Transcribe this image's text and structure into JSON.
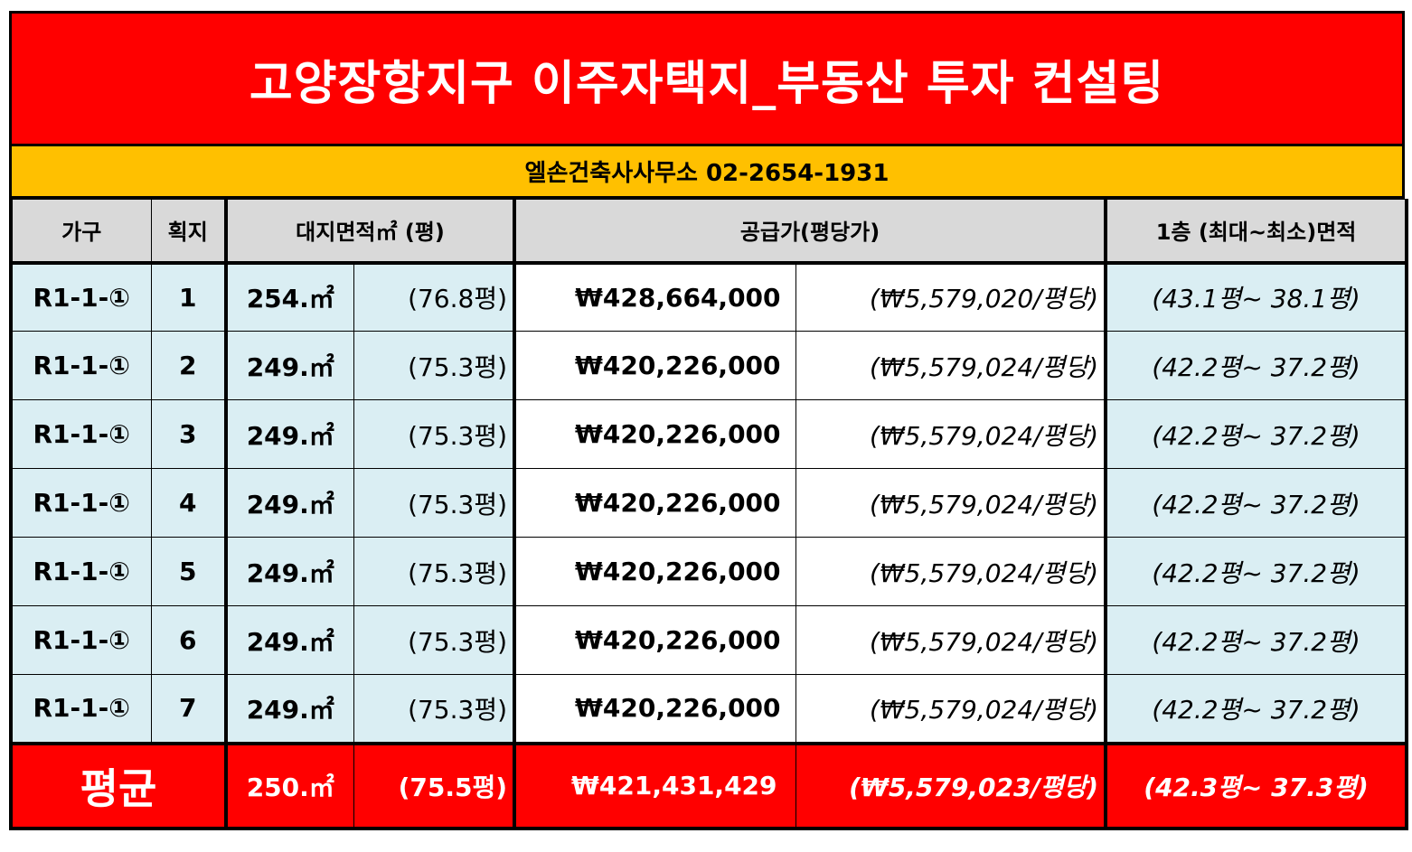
{
  "title": "고양장항지구 이주자택지_부동산 투자 컨설팅",
  "contact": "엘손건축사사무소 02-2654-1931",
  "headers": {
    "household": "가구",
    "lot": "획지",
    "land_area": "대지면적㎡ (평)",
    "supply_price": "공급가(평당가)",
    "floor_area": "1층 (최대~최소)면적"
  },
  "rows": [
    {
      "household": "R1-1-①",
      "lot": "1",
      "area_m2": "254.㎡",
      "area_py": "(76.8평)",
      "price": "₩428,664,000",
      "price_per_py": "(₩5,579,020/평당)",
      "floor": "(43.1평~  38.1평)"
    },
    {
      "household": "R1-1-①",
      "lot": "2",
      "area_m2": "249.㎡",
      "area_py": "(75.3평)",
      "price": "₩420,226,000",
      "price_per_py": "(₩5,579,024/평당)",
      "floor": "(42.2평~  37.2평)"
    },
    {
      "household": "R1-1-①",
      "lot": "3",
      "area_m2": "249.㎡",
      "area_py": "(75.3평)",
      "price": "₩420,226,000",
      "price_per_py": "(₩5,579,024/평당)",
      "floor": "(42.2평~  37.2평)"
    },
    {
      "household": "R1-1-①",
      "lot": "4",
      "area_m2": "249.㎡",
      "area_py": "(75.3평)",
      "price": "₩420,226,000",
      "price_per_py": "(₩5,579,024/평당)",
      "floor": "(42.2평~  37.2평)"
    },
    {
      "household": "R1-1-①",
      "lot": "5",
      "area_m2": "249.㎡",
      "area_py": "(75.3평)",
      "price": "₩420,226,000",
      "price_per_py": "(₩5,579,024/평당)",
      "floor": "(42.2평~  37.2평)"
    },
    {
      "household": "R1-1-①",
      "lot": "6",
      "area_m2": "249.㎡",
      "area_py": "(75.3평)",
      "price": "₩420,226,000",
      "price_per_py": "(₩5,579,024/평당)",
      "floor": "(42.2평~  37.2평)"
    },
    {
      "household": "R1-1-①",
      "lot": "7",
      "area_m2": "249.㎡",
      "area_py": "(75.3평)",
      "price": "₩420,226,000",
      "price_per_py": "(₩5,579,024/평당)",
      "floor": "(42.2평~  37.2평)"
    }
  ],
  "average": {
    "label": "평균",
    "area_m2": "250.㎡",
    "area_py": "(75.5평)",
    "price": "₩421,431,429",
    "price_per_py": "(₩5,579,023/평당)",
    "floor": "(42.3평~  37.3평)"
  },
  "colors": {
    "title_bg": "#ff0000",
    "contact_bg": "#ffc000",
    "header_bg": "#d9d9d9",
    "row_bg": "#daeef3"
  }
}
